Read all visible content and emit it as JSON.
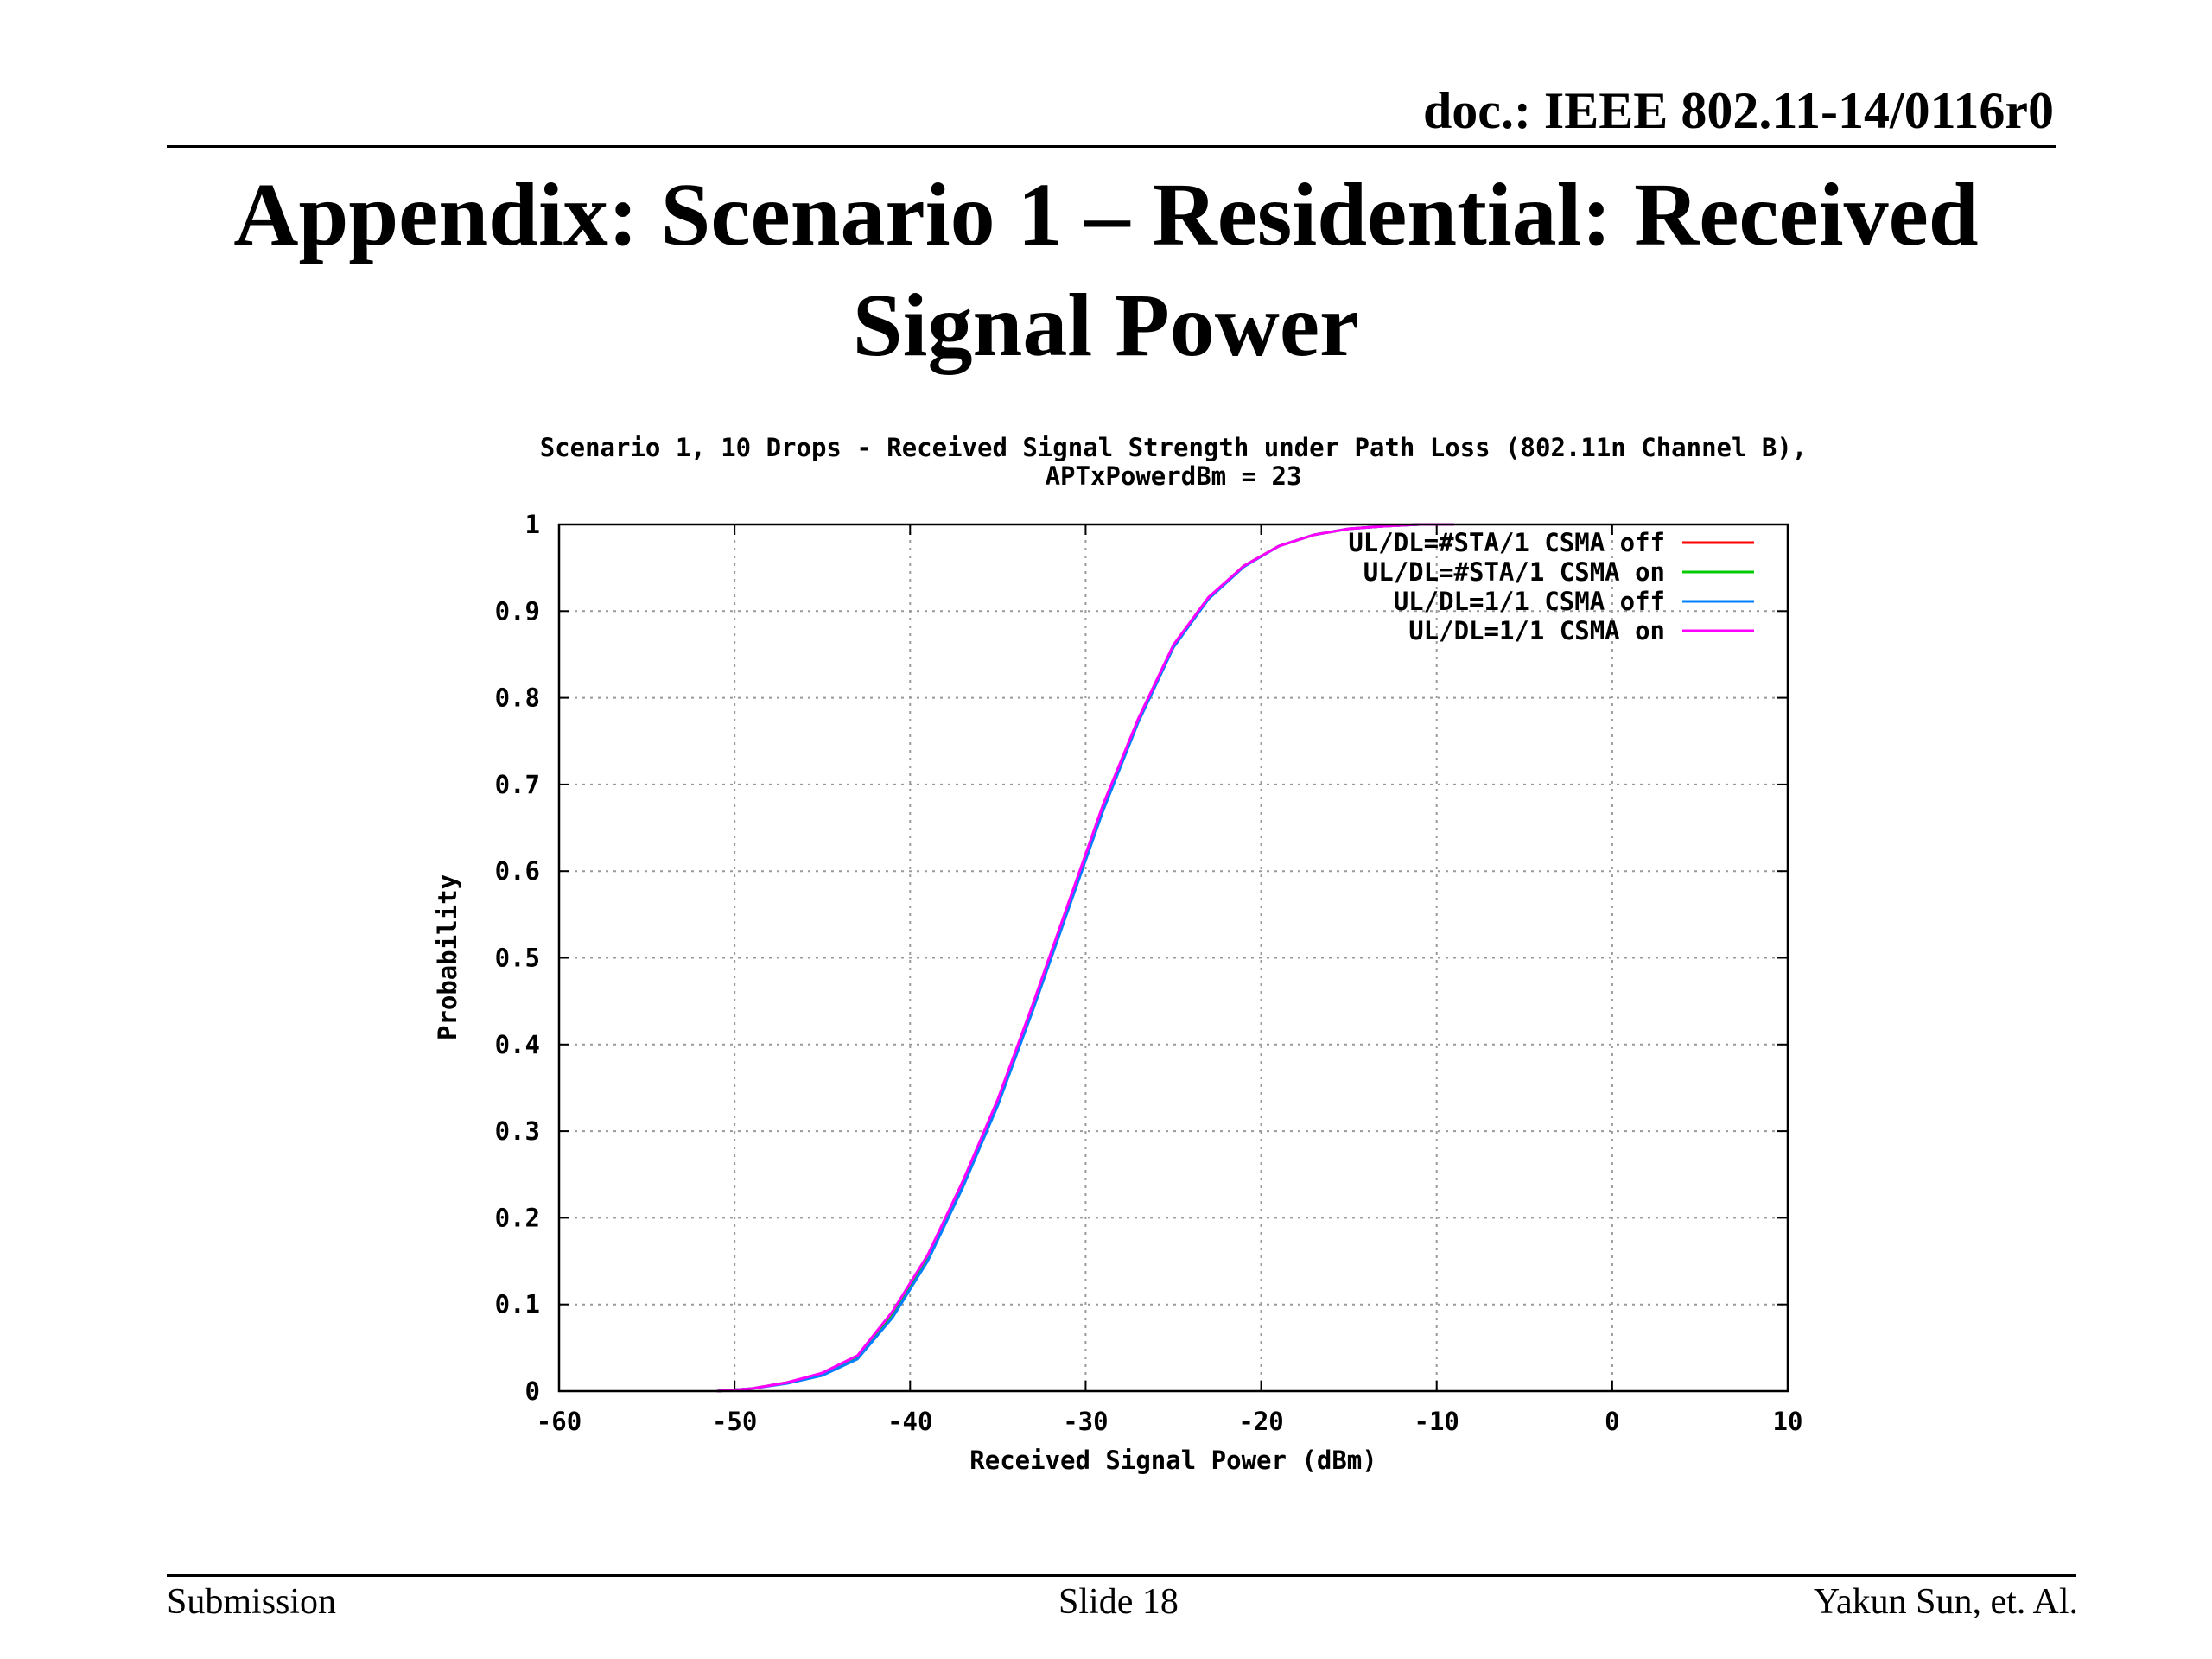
{
  "header": {
    "doc_id": "doc.: IEEE 802.11-14/0116r0",
    "title": "Appendix: Scenario 1 – Residential: Received Signal Power"
  },
  "footer": {
    "left": "Submission",
    "center": "Slide 18",
    "right": "Yakun Sun, et. Al."
  },
  "chart_data": {
    "type": "line",
    "title_line1": "Scenario 1, 10 Drops - Received Signal Strength under Path Loss (802.11n Channel B),",
    "title_line2": "APTxPowerdBm = 23",
    "xlabel": "Received Signal Power (dBm)",
    "ylabel": "Probability",
    "xlim": [
      -60,
      10
    ],
    "ylim": [
      0,
      1
    ],
    "xticks": [
      -60,
      -50,
      -40,
      -30,
      -20,
      -10,
      0,
      10
    ],
    "yticks": [
      0,
      0.1,
      0.2,
      0.3,
      0.4,
      0.5,
      0.6,
      0.7,
      0.8,
      0.9,
      1
    ],
    "xtick_labels": [
      "-60",
      "-50",
      "-40",
      "-30",
      "-20",
      "-10",
      "0",
      "10"
    ],
    "ytick_labels": [
      "0",
      "0.1",
      "0.2",
      "0.3",
      "0.4",
      "0.5",
      "0.6",
      "0.7",
      "0.8",
      "0.9",
      "1"
    ],
    "grid": true,
    "legend_position": "top-right",
    "series": [
      {
        "name": "UL/DL=#STA/1 CSMA off",
        "color": "#ff0000",
        "x": [
          -51,
          -49,
          -47,
          -45,
          -43,
          -41,
          -39,
          -37,
          -35,
          -33,
          -31,
          -29,
          -27,
          -25,
          -23,
          -21,
          -19,
          -17,
          -15,
          -13,
          -11,
          -9
        ],
        "y": [
          0,
          0.003,
          0.01,
          0.02,
          0.04,
          0.09,
          0.155,
          0.24,
          0.335,
          0.445,
          0.56,
          0.675,
          0.775,
          0.86,
          0.915,
          0.952,
          0.975,
          0.988,
          0.995,
          0.998,
          1.0,
          1.0
        ]
      },
      {
        "name": "UL/DL=#STA/1 CSMA on",
        "color": "#00cc00",
        "x": [
          -51,
          -49,
          -47,
          -45,
          -43,
          -41,
          -39,
          -37,
          -35,
          -33,
          -31,
          -29,
          -27,
          -25,
          -23,
          -21,
          -19,
          -17,
          -15,
          -13,
          -11,
          -9
        ],
        "y": [
          0,
          0.003,
          0.01,
          0.02,
          0.04,
          0.09,
          0.155,
          0.24,
          0.335,
          0.445,
          0.56,
          0.675,
          0.775,
          0.86,
          0.915,
          0.952,
          0.975,
          0.988,
          0.995,
          0.998,
          1.0,
          1.0
        ]
      },
      {
        "name": "UL/DL=1/1 CSMA off",
        "color": "#0080ff",
        "x": [
          -51,
          -49,
          -47,
          -45,
          -43,
          -41,
          -39,
          -37,
          -35,
          -33,
          -31,
          -29,
          -27,
          -25,
          -23,
          -21,
          -19,
          -17,
          -15,
          -13,
          -11,
          -9
        ],
        "y": [
          0,
          0.003,
          0.009,
          0.018,
          0.037,
          0.085,
          0.15,
          0.235,
          0.33,
          0.44,
          0.555,
          0.67,
          0.772,
          0.858,
          0.914,
          0.951,
          0.975,
          0.988,
          0.995,
          0.998,
          1.0,
          1.0
        ]
      },
      {
        "name": "UL/DL=1/1 CSMA on",
        "color": "#ff00ff",
        "x": [
          -51,
          -49,
          -47,
          -45,
          -43,
          -41,
          -39,
          -37,
          -35,
          -33,
          -31,
          -29,
          -27,
          -25,
          -23,
          -21,
          -19,
          -17,
          -15,
          -13,
          -11,
          -9
        ],
        "y": [
          0,
          0.003,
          0.01,
          0.021,
          0.041,
          0.092,
          0.157,
          0.242,
          0.337,
          0.447,
          0.562,
          0.677,
          0.776,
          0.861,
          0.916,
          0.952,
          0.975,
          0.988,
          0.995,
          0.998,
          1.0,
          1.0
        ]
      }
    ]
  }
}
